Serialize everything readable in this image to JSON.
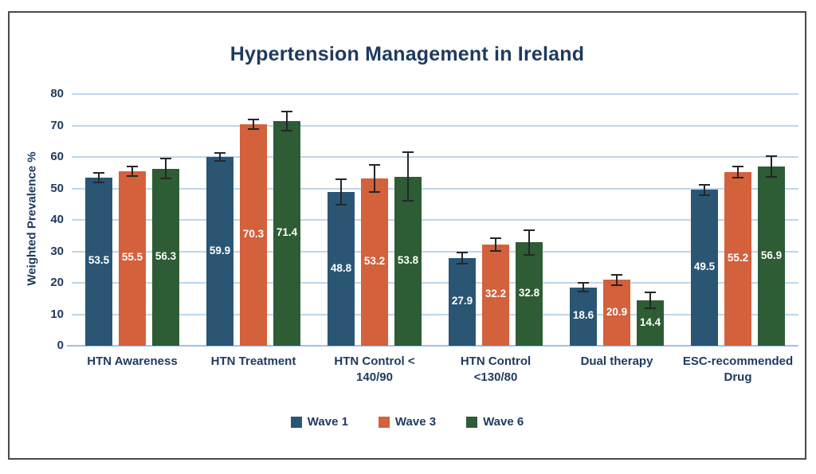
{
  "chart_data": {
    "type": "bar",
    "title": "Hypertension Management in Ireland",
    "xlabel": "",
    "ylabel": "Weighted Prevalence %",
    "ylim": [
      0,
      80
    ],
    "ytick_step": 10,
    "grid": true,
    "legend_position": "bottom",
    "error_bars": true,
    "categories": [
      "HTN Awareness",
      "HTN Treatment",
      "HTN Control <\n140/90",
      "HTN Control\n<130/80",
      "Dual therapy",
      "ESC-recommended\nDrug"
    ],
    "series": [
      {
        "name": "Wave 1",
        "color": "#2A5674",
        "values": [
          53.5,
          59.9,
          48.8,
          27.9,
          18.6,
          49.5
        ],
        "errors": [
          1.8,
          1.5,
          4.3,
          2.0,
          1.6,
          2.0
        ]
      },
      {
        "name": "Wave 3",
        "color": "#D2613C",
        "values": [
          55.5,
          70.3,
          53.2,
          32.2,
          20.9,
          55.2
        ],
        "errors": [
          1.8,
          1.8,
          4.5,
          2.3,
          1.8,
          2.0
        ]
      },
      {
        "name": "Wave 6",
        "color": "#2D5C35",
        "values": [
          56.3,
          71.4,
          53.8,
          32.8,
          14.4,
          56.9
        ],
        "errors": [
          3.5,
          3.2,
          8.0,
          4.2,
          2.8,
          3.5
        ]
      }
    ]
  },
  "style": {
    "text_color": "#1E3A5F",
    "grid_color": "#BDD7EE",
    "axis_line_color": "#9CC2E5",
    "error_bar_color": "#262626",
    "frame_border_color": "#4A4A4A",
    "value_label_color": "#FFFFFF"
  }
}
